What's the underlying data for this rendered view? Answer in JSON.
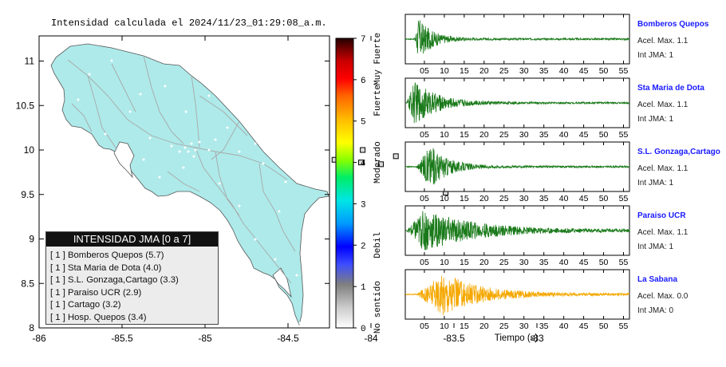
{
  "map": {
    "title": "Intensidad calculada el 2024/11/23_01:29:08_a.m.",
    "x_ticks": [
      "-86",
      "-85.5",
      "-85",
      "-84.5",
      "-84",
      "-83.5",
      "-83"
    ],
    "y_ticks": [
      "11",
      "10.5",
      "10",
      "9.5",
      "9",
      "8.5",
      "8"
    ],
    "land_color": "#aeeaea"
  },
  "stations_on_map": [
    {
      "lon": -84.16,
      "lat": 9.61
    },
    {
      "lon": -84.06,
      "lat": 9.86
    },
    {
      "lon": -83.94,
      "lat": 9.84
    },
    {
      "lon": -84.16,
      "lat": 9.93
    },
    {
      "lon": -83.85,
      "lat": 9.93
    },
    {
      "lon": -83.55,
      "lat": 9.52
    },
    {
      "lon": -84.05,
      "lat": 10.0
    },
    {
      "lon": -84.22,
      "lat": 9.89
    }
  ],
  "legend": {
    "title": "INTENSIDAD JMA [0 a 7]",
    "items": [
      "[ 1 ]  Bomberos Quepos (5.7)",
      "[ 1 ]  Sta Maria de Dota (4.0)",
      "[ 1 ]  S.L. Gonzaga,Cartago (3.3)",
      "[ 1 ]  Paraiso UCR (2.9)",
      "[ 1 ]  Cartago (3.2)",
      "[ 1 ]  Hosp. Quepos (3.4)"
    ]
  },
  "color_scale": {
    "ticks": [
      "0",
      "1",
      "2",
      "3",
      "4",
      "5",
      "6",
      "7"
    ],
    "categories": [
      "No sentido",
      "Debil",
      "Moderado",
      "Fuerte",
      "Muy Fuerte"
    ]
  },
  "waveforms": {
    "x_ticks": [
      "05",
      "10",
      "15",
      "20",
      "25",
      "30",
      "35",
      "40",
      "45",
      "50",
      "55"
    ],
    "x_label": "Tiempo (s)",
    "stations": [
      {
        "name": "Bomberos Quepos",
        "acel": "Acel. Max. 1.1",
        "jma": "Int JMA: 1",
        "color": "#1a7a1a",
        "profile": "quepos"
      },
      {
        "name": "Sta Maria de Dota",
        "acel": "Acel. Max. 1.1",
        "jma": "Int JMA: 1",
        "color": "#1a7a1a",
        "profile": "dota"
      },
      {
        "name": "S.L. Gonzaga,Cartago",
        "acel": "Acel. Max. 1.1",
        "jma": "Int JMA: 1",
        "color": "#1a7a1a",
        "profile": "gonzaga"
      },
      {
        "name": "Paraiso UCR",
        "acel": "Acel. Max. 1.1",
        "jma": "Int JMA: 1",
        "color": "#1a7a1a",
        "profile": "paraiso"
      },
      {
        "name": "La Sabana",
        "acel": "Acel. Max. 0.0",
        "jma": "Int JMA: 0",
        "color": "#f5a800",
        "profile": "sabana"
      }
    ]
  }
}
